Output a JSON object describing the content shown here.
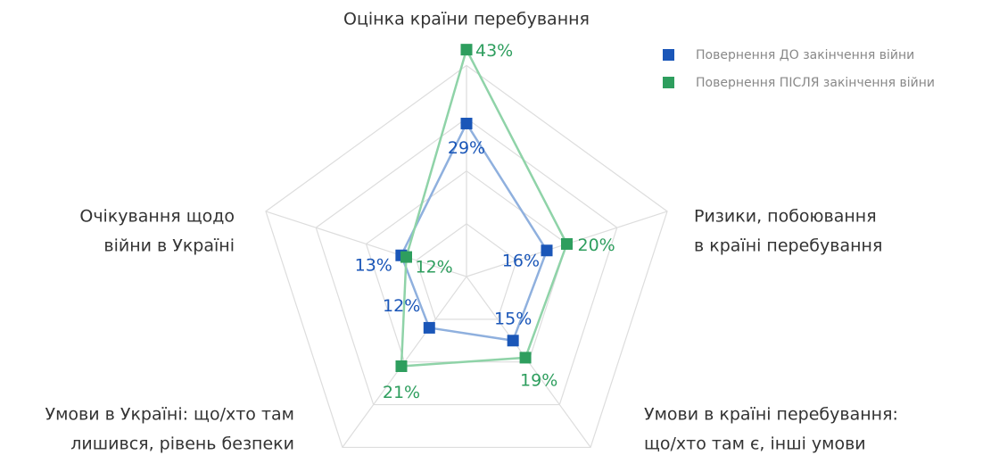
{
  "chart_data": {
    "type": "radar",
    "categories": [
      [
        "Оцінка країни перебування"
      ],
      [
        "Ризики, побоювання",
        "в країні перебування"
      ],
      [
        "Умови в країні перебування:",
        "що/хто там є, інші умови"
      ],
      [
        "Умови в Україні: що/хто там",
        "лишився, рівень безпеки"
      ],
      [
        "Очікування щодо",
        "війни в Україні"
      ]
    ],
    "series": [
      {
        "name": "Повернення ДО закінчення війни",
        "color": "#1a56b8",
        "line_color": "#8fb0de",
        "values": [
          29,
          16,
          15,
          12,
          13
        ],
        "value_labels": [
          "29%",
          "16%",
          "15%",
          "12%",
          "13%"
        ]
      },
      {
        "name": "Повернення ПІСЛЯ закінчення війни",
        "color": "#2e9e5e",
        "line_color": "#8fd3a8",
        "values": [
          43,
          20,
          19,
          21,
          12
        ],
        "value_labels": [
          "43%",
          "20%",
          "19%",
          "21%",
          "12%"
        ]
      }
    ],
    "rlim": [
      0,
      40
    ],
    "rticks": [
      10,
      20,
      30,
      40
    ],
    "grid": true
  }
}
